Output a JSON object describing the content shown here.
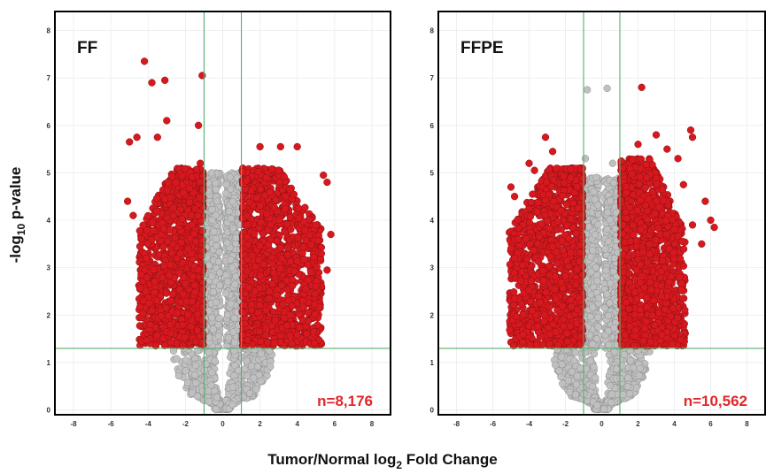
{
  "colors": {
    "significant": "#d7191f",
    "significant_edge": "#8b0f12",
    "nonsignificant": "#c0c0c0",
    "nonsignificant_edge": "#8e8e8e",
    "threshold_line": "#55b06a",
    "count_label": "#e3262b",
    "frame": "#000000",
    "grid": "#e9e9e9"
  },
  "shared_axes": {
    "xlabel_prefix": "Tumor/Normal log",
    "xlabel_sub": "2",
    "xlabel_suffix": " Fold Change",
    "ylabel_prefix": "-log",
    "ylabel_sub": "10",
    "ylabel_suffix": " p-value"
  },
  "chart_data": [
    {
      "type": "scatter",
      "panel_label": "FF",
      "count_label": "n=8,176",
      "xlim": [
        -9,
        9
      ],
      "ylim": [
        -0.1,
        8.4
      ],
      "xticks": [
        -8,
        -6,
        -4,
        -2,
        0,
        2,
        4,
        6,
        8
      ],
      "yticks": [
        0,
        1,
        2,
        3,
        4,
        5,
        6,
        7,
        8
      ],
      "grid": true,
      "thresholds": {
        "log2fc": [
          -1,
          1
        ],
        "neg_log10_p": 1.3
      },
      "significant_left_outliers": [
        [
          -4.2,
          7.35
        ],
        [
          -3.8,
          6.9
        ],
        [
          -3.1,
          6.95
        ],
        [
          -1.1,
          7.05
        ],
        [
          -3.0,
          6.1
        ],
        [
          -1.3,
          6.0
        ],
        [
          -3.5,
          5.75
        ],
        [
          -5.0,
          5.65
        ],
        [
          -4.6,
          5.75
        ],
        [
          -1.2,
          5.2
        ],
        [
          -5.1,
          4.4
        ],
        [
          -4.8,
          4.1
        ],
        [
          -4.1,
          3.2
        ]
      ],
      "significant_right_outliers": [
        [
          2.0,
          5.55
        ],
        [
          3.1,
          5.55
        ],
        [
          4.0,
          5.55
        ],
        [
          5.4,
          4.95
        ],
        [
          5.6,
          4.8
        ],
        [
          5.8,
          3.7
        ],
        [
          5.6,
          2.95
        ],
        [
          5.0,
          2.6
        ],
        [
          4.3,
          2.3
        ],
        [
          3.6,
          2.0
        ]
      ],
      "ns_top_points": [
        [
          -0.6,
          5.0
        ],
        [
          0.2,
          4.75
        ],
        [
          -0.3,
          4.4
        ]
      ],
      "envelope": {
        "sig_left": {
          "x_outer": -4.5,
          "x_inner": -1.05,
          "y_max": 5.1
        },
        "sig_right": {
          "x_inner": 1.05,
          "x_outer": 5.3,
          "y_max": 5.1
        },
        "ns_center": {
          "y_max": 5.0
        }
      }
    },
    {
      "type": "scatter",
      "panel_label": "FFPE",
      "count_label": "n=10,562",
      "xlim": [
        -9,
        9
      ],
      "ylim": [
        -0.1,
        8.4
      ],
      "xticks": [
        -8,
        -6,
        -4,
        -2,
        0,
        2,
        4,
        6,
        8
      ],
      "yticks": [
        0,
        1,
        2,
        3,
        4,
        5,
        6,
        7,
        8
      ],
      "grid": true,
      "thresholds": {
        "log2fc": [
          -1,
          1
        ],
        "neg_log10_p": 1.3
      },
      "significant_left_outliers": [
        [
          -5.0,
          4.7
        ],
        [
          -4.8,
          4.5
        ],
        [
          -4.0,
          5.2
        ],
        [
          -3.7,
          5.05
        ],
        [
          -3.1,
          5.75
        ],
        [
          -2.7,
          5.45
        ],
        [
          -5.0,
          3.4
        ],
        [
          -4.8,
          3.2
        ],
        [
          -4.6,
          3.6
        ]
      ],
      "significant_right_outliers": [
        [
          2.2,
          6.8
        ],
        [
          3.0,
          5.8
        ],
        [
          4.9,
          5.9
        ],
        [
          5.0,
          5.75
        ],
        [
          5.7,
          4.4
        ],
        [
          6.0,
          4.0
        ],
        [
          6.2,
          3.85
        ],
        [
          5.5,
          3.5
        ],
        [
          5.0,
          3.9
        ],
        [
          3.6,
          5.5
        ],
        [
          4.2,
          5.3
        ],
        [
          4.5,
          4.75
        ],
        [
          3.7,
          2.7
        ],
        [
          3.3,
          2.4
        ],
        [
          2.0,
          5.6
        ]
      ],
      "ns_top_points": [
        [
          -0.8,
          6.75
        ],
        [
          0.3,
          6.78
        ],
        [
          -0.9,
          5.3
        ],
        [
          0.6,
          5.2
        ],
        [
          -0.3,
          4.9
        ]
      ],
      "envelope": {
        "sig_left": {
          "x_outer": -5.1,
          "x_inner": -1.05,
          "y_max": 5.1
        },
        "sig_right": {
          "x_inner": 1.05,
          "x_outer": 4.6,
          "y_max": 5.3
        },
        "ns_center": {
          "y_max": 4.9
        }
      }
    }
  ]
}
